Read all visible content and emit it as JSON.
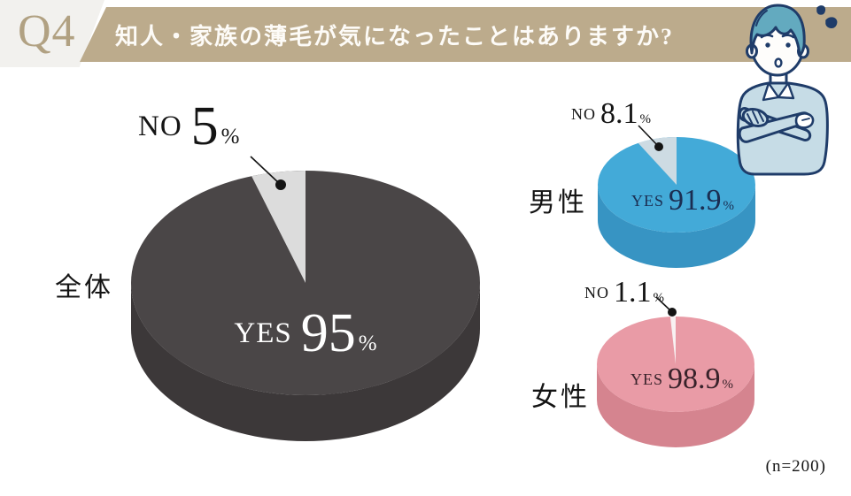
{
  "header": {
    "question_number": "Q4",
    "title": "知人・家族の薄毛が気になったことはありますか?"
  },
  "labels": {
    "yes_prefix": "YES",
    "no_prefix": "NO",
    "percent": "%"
  },
  "footer": {
    "sample_size": "(n=200)"
  },
  "theme": {
    "band_color": "#bcab8c",
    "q_box_color": "#f2f1ee",
    "q_text_color": "#b1a182",
    "leader_color": "#141414"
  },
  "chart_data": {
    "type": "pie",
    "style": "3d-pie",
    "title": "知人・家族の薄毛が気になったことはありますか?",
    "note": "(n=200)",
    "legend_position": "inside-slices",
    "no_slice_position": "thin wedge ending at 12 o'clock",
    "charts": [
      {
        "group": "全体",
        "slices": [
          {
            "name": "YES",
            "value": 95,
            "display": "95"
          },
          {
            "name": "NO",
            "value": 5,
            "display": "5"
          }
        ],
        "colors": {
          "top": "#4a4647",
          "side": "#3c3839",
          "no_slice": "#dcdcdc",
          "yes_text": "#ffffff",
          "no_text": "#141414"
        }
      },
      {
        "group": "男性",
        "slices": [
          {
            "name": "YES",
            "value": 91.9,
            "display": "91.9"
          },
          {
            "name": "NO",
            "value": 8.1,
            "display": "8.1"
          }
        ],
        "colors": {
          "top": "#43aad8",
          "side": "#3794c3",
          "no_slice": "#cddbe3",
          "yes_text": "#1b2e52",
          "no_text": "#141414"
        }
      },
      {
        "group": "女性",
        "slices": [
          {
            "name": "YES",
            "value": 98.9,
            "display": "98.9"
          },
          {
            "name": "NO",
            "value": 1.1,
            "display": "1.1"
          }
        ],
        "colors": {
          "top": "#e99ba6",
          "side": "#d5848f",
          "no_slice": "#f8f1f2",
          "yes_text": "#38222a",
          "no_text": "#141414"
        }
      }
    ]
  }
}
